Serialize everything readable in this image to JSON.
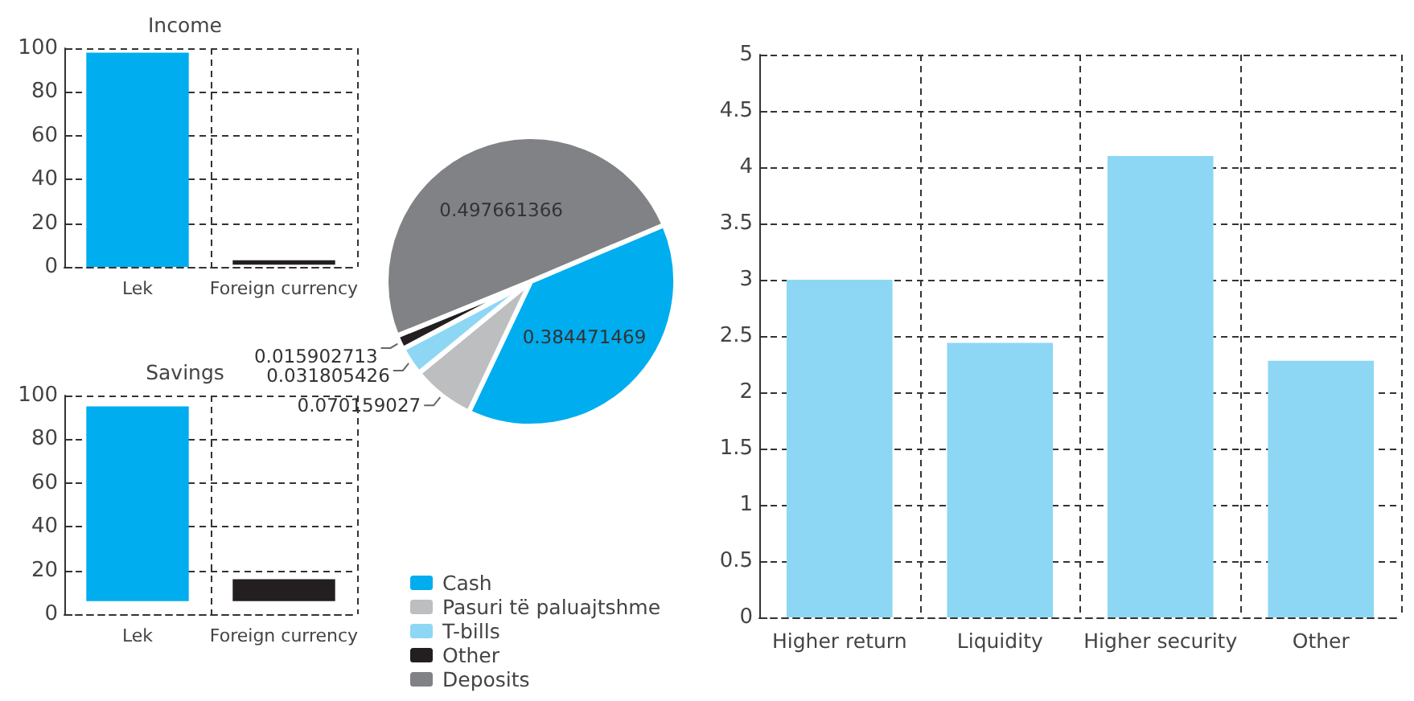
{
  "chart_data": [
    {
      "type": "bar",
      "title": "Income",
      "categories": [
        "Lek",
        "Foreign currency"
      ],
      "colors": [
        "#00adef",
        "#231f20"
      ],
      "values": [
        98,
        2
      ],
      "base": [
        0,
        1
      ],
      "ylim": [
        0,
        100
      ],
      "yticks": [
        0,
        20,
        40,
        60,
        80,
        100
      ],
      "grid": true
    },
    {
      "type": "bar",
      "title": "Savings",
      "categories": [
        "Lek",
        "Foreign currency"
      ],
      "colors": [
        "#00adef",
        "#231f20"
      ],
      "values": [
        89,
        10
      ],
      "base": [
        6,
        6
      ],
      "ylim": [
        0,
        100
      ],
      "yticks": [
        0,
        20,
        40,
        60,
        80,
        100
      ],
      "grid": true
    },
    {
      "type": "pie",
      "categories": [
        "Cash",
        "Pasuri të paluajtshme",
        "T-bills",
        "Other",
        "Deposits"
      ],
      "values": [
        0.384471469,
        0.070159027,
        0.031805426,
        0.015902713,
        0.497661366
      ],
      "colors": [
        "#00adef",
        "#bcbec0",
        "#8dd7f5",
        "#231f20",
        "#808285"
      ],
      "data_labels": true,
      "legend": "bottom"
    },
    {
      "type": "bar",
      "categories": [
        "Higher return",
        "Liquidity",
        "Higher security",
        "Other"
      ],
      "values": [
        3.0,
        2.44,
        4.1,
        2.28
      ],
      "color": "#8dd7f5",
      "ylim": [
        0,
        5
      ],
      "yticks": [
        0,
        0.5,
        1,
        1.5,
        2,
        2.5,
        3,
        3.5,
        4,
        4.5,
        5
      ],
      "grid": true
    }
  ]
}
